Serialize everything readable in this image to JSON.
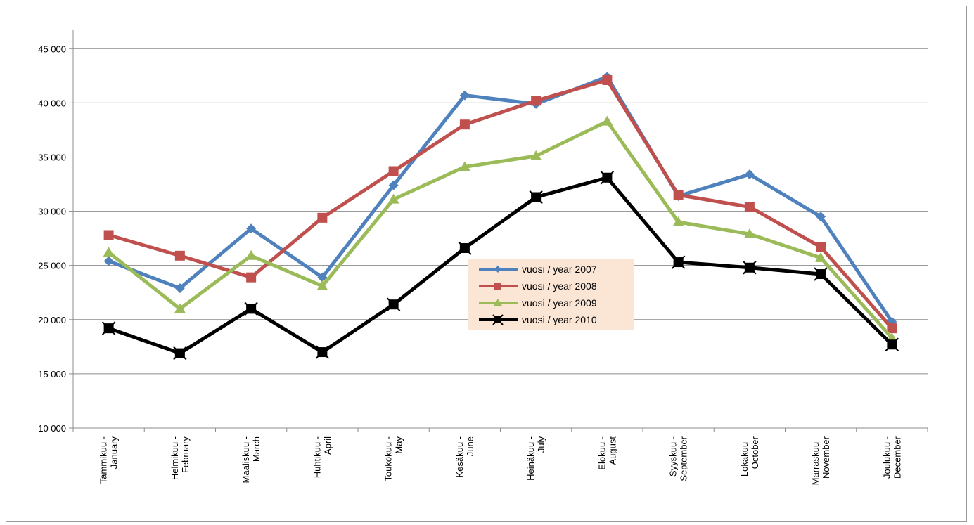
{
  "chart_data": {
    "type": "line",
    "categories": [
      [
        "Tammikuu -",
        "January"
      ],
      [
        "Helmikuu -",
        "February"
      ],
      [
        "Maaliskuu -",
        "March"
      ],
      [
        "Huhtikuu -",
        "April"
      ],
      [
        "Toukokuu -",
        "May"
      ],
      [
        "Kesäkuu -",
        "June"
      ],
      [
        "Heinäkuu -",
        "July"
      ],
      [
        "Elokuu -",
        "August"
      ],
      [
        "Syyskuu -",
        "September"
      ],
      [
        "Lokakuu -",
        "October"
      ],
      [
        "Marraskuu -",
        "November"
      ],
      [
        "Joulukuu -",
        "December"
      ]
    ],
    "ylim": [
      10000,
      45000
    ],
    "yticks": [
      10000,
      15000,
      20000,
      25000,
      30000,
      35000,
      40000,
      45000
    ],
    "ytick_labels": [
      "10 000",
      "15 000",
      "20 000",
      "25 000",
      "30 000",
      "35 000",
      "40 000",
      "45 000"
    ],
    "grid": true,
    "legend_position": "center",
    "series": [
      {
        "name": "vuosi / year 2007",
        "color": "#4f81bd",
        "marker": "diamond",
        "values": [
          25400,
          22900,
          28400,
          23900,
          32400,
          40700,
          39900,
          42400,
          31400,
          33400,
          29500,
          19800
        ]
      },
      {
        "name": "vuosi / year 2008",
        "color": "#c0504d",
        "marker": "square",
        "values": [
          27800,
          25900,
          23900,
          29400,
          33700,
          38000,
          40200,
          42100,
          31500,
          30400,
          26700,
          19200
        ]
      },
      {
        "name": "vuosi / year 2009",
        "color": "#9bbb59",
        "marker": "triangle",
        "values": [
          26200,
          21000,
          25900,
          23100,
          31100,
          34100,
          35100,
          38300,
          29000,
          27900,
          25700,
          18300
        ]
      },
      {
        "name": "vuosi / year 2010",
        "color": "#000000",
        "marker": "square-x",
        "values": [
          19200,
          16900,
          21000,
          17000,
          21400,
          26600,
          31300,
          33100,
          25300,
          24800,
          24200,
          17700
        ]
      }
    ]
  }
}
